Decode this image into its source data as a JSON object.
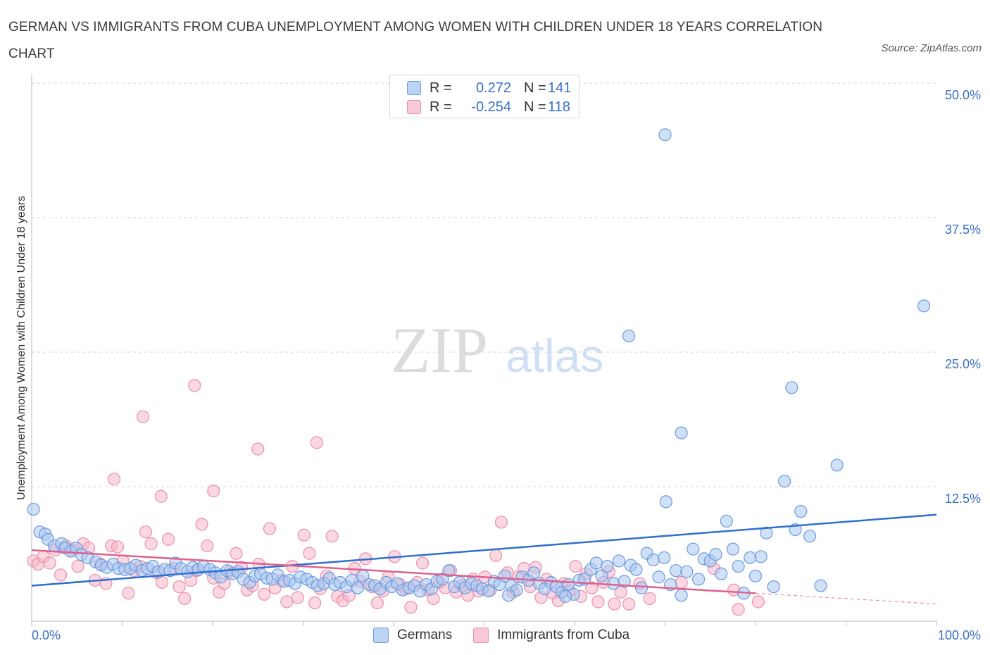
{
  "header": {
    "title": "GERMAN VS IMMIGRANTS FROM CUBA UNEMPLOYMENT AMONG WOMEN WITH CHILDREN UNDER 18 YEARS CORRELATION CHART",
    "source": "Source: ZipAtlas.com"
  },
  "watermark": {
    "zip": "ZIP",
    "atlas": "atlas"
  },
  "legend_top": {
    "rows": [
      {
        "r_label": "R =",
        "r_value": "0.272",
        "n_label": "N =",
        "n_value": "141"
      },
      {
        "r_label": "R =",
        "r_value": "-0.254",
        "n_label": "N =",
        "n_value": "118"
      }
    ]
  },
  "legend_bottom": {
    "germans": "Germans",
    "cuba": "Immigrants from Cuba"
  },
  "colors": {
    "germans_fill": "#a9c6f0",
    "germans_stroke": "#6b9be0",
    "germans_line": "#2f6fcf",
    "cuba_fill": "#f5b7c9",
    "cuba_stroke": "#ec8fab",
    "cuba_line": "#e0608e",
    "axis_label": "#3a6fc4",
    "grid": "#d6d6d6"
  },
  "chart_data": {
    "type": "scatter",
    "ylabel": "Unemployment Among Women with Children Under 18 years",
    "xlabel": "",
    "xlim": [
      0,
      100
    ],
    "ylim": [
      0,
      50
    ],
    "x_tick_labels": [
      "0.0%",
      "100.0%"
    ],
    "y_ticks": [
      12.5,
      25.0,
      37.5,
      50.0
    ],
    "y_tick_labels": [
      "12.5%",
      "25.0%",
      "37.5%",
      "50.0%"
    ],
    "grid": true,
    "legend": "top-center",
    "series": [
      {
        "name": "Germans",
        "r": 0.272,
        "n": 141,
        "trend": {
          "x": [
            0,
            100
          ],
          "y": [
            3.3,
            9.9
          ]
        },
        "points": [
          [
            0.2,
            10.4
          ],
          [
            0.9,
            8.3
          ],
          [
            1.5,
            8.1
          ],
          [
            1.8,
            7.6
          ],
          [
            2.5,
            7.0
          ],
          [
            3.3,
            7.2
          ],
          [
            3.7,
            6.8
          ],
          [
            4.3,
            6.5
          ],
          [
            4.9,
            6.8
          ],
          [
            5.5,
            6.2
          ],
          [
            6.2,
            5.9
          ],
          [
            7.1,
            5.5
          ],
          [
            7.7,
            5.2
          ],
          [
            8.3,
            5.0
          ],
          [
            9.0,
            5.3
          ],
          [
            9.6,
            4.9
          ],
          [
            10.3,
            4.8
          ],
          [
            10.9,
            4.9
          ],
          [
            11.5,
            5.2
          ],
          [
            12.2,
            4.7
          ],
          [
            12.8,
            4.9
          ],
          [
            13.4,
            5.1
          ],
          [
            14.0,
            4.6
          ],
          [
            14.7,
            4.8
          ],
          [
            15.3,
            4.7
          ],
          [
            15.9,
            5.4
          ],
          [
            16.5,
            4.9
          ],
          [
            17.2,
            4.6
          ],
          [
            17.8,
            5.0
          ],
          [
            18.4,
            4.8
          ],
          [
            19.0,
            5.1
          ],
          [
            19.7,
            4.8
          ],
          [
            20.3,
            4.5
          ],
          [
            20.9,
            4.1
          ],
          [
            21.6,
            4.7
          ],
          [
            22.2,
            4.4
          ],
          [
            22.8,
            4.6
          ],
          [
            23.4,
            3.9
          ],
          [
            24.1,
            3.6
          ],
          [
            24.7,
            4.2
          ],
          [
            25.3,
            4.4
          ],
          [
            26.0,
            4.0
          ],
          [
            26.6,
            3.9
          ],
          [
            27.2,
            4.3
          ],
          [
            27.9,
            3.7
          ],
          [
            28.5,
            3.8
          ],
          [
            29.1,
            3.5
          ],
          [
            29.7,
            4.1
          ],
          [
            30.4,
            3.9
          ],
          [
            31.0,
            3.6
          ],
          [
            31.6,
            3.3
          ],
          [
            32.3,
            3.5
          ],
          [
            32.9,
            4.0
          ],
          [
            33.5,
            3.4
          ],
          [
            34.1,
            3.6
          ],
          [
            34.8,
            3.2
          ],
          [
            35.4,
            3.8
          ],
          [
            36.0,
            3.1
          ],
          [
            36.6,
            4.2
          ],
          [
            37.3,
            3.4
          ],
          [
            37.9,
            3.3
          ],
          [
            38.5,
            3.0
          ],
          [
            39.2,
            3.6
          ],
          [
            39.8,
            3.2
          ],
          [
            40.4,
            3.5
          ],
          [
            41.0,
            2.9
          ],
          [
            41.7,
            3.1
          ],
          [
            42.3,
            3.3
          ],
          [
            42.9,
            2.8
          ],
          [
            43.6,
            3.4
          ],
          [
            44.2,
            3.0
          ],
          [
            44.8,
            3.7
          ],
          [
            45.4,
            3.9
          ],
          [
            46.1,
            4.7
          ],
          [
            46.7,
            3.2
          ],
          [
            47.3,
            3.6
          ],
          [
            47.9,
            3.1
          ],
          [
            48.6,
            3.5
          ],
          [
            49.2,
            3.3
          ],
          [
            49.8,
            3.0
          ],
          [
            50.5,
            2.8
          ],
          [
            51.1,
            3.7
          ],
          [
            51.7,
            3.4
          ],
          [
            52.3,
            4.2
          ],
          [
            53.0,
            3.3
          ],
          [
            53.6,
            2.9
          ],
          [
            54.2,
            4.1
          ],
          [
            54.9,
            3.8
          ],
          [
            55.5,
            4.5
          ],
          [
            56.1,
            3.5
          ],
          [
            56.7,
            3.0
          ],
          [
            57.4,
            3.6
          ],
          [
            58.0,
            3.2
          ],
          [
            58.6,
            2.7
          ],
          [
            59.3,
            3.4
          ],
          [
            59.9,
            2.5
          ],
          [
            60.5,
            3.8
          ],
          [
            61.1,
            3.9
          ],
          [
            61.8,
            4.8
          ],
          [
            62.4,
            5.4
          ],
          [
            63.0,
            4.2
          ],
          [
            63.6,
            5.1
          ],
          [
            64.3,
            3.5
          ],
          [
            64.9,
            5.6
          ],
          [
            65.5,
            3.7
          ],
          [
            66.2,
            5.2
          ],
          [
            66.8,
            4.8
          ],
          [
            67.4,
            3.1
          ],
          [
            68.0,
            6.3
          ],
          [
            68.7,
            5.7
          ],
          [
            69.3,
            4.1
          ],
          [
            69.9,
            5.9
          ],
          [
            70.6,
            3.4
          ],
          [
            71.2,
            4.7
          ],
          [
            71.8,
            2.4
          ],
          [
            72.4,
            4.6
          ],
          [
            73.1,
            6.7
          ],
          [
            73.7,
            3.9
          ],
          [
            74.3,
            5.8
          ],
          [
            75.0,
            5.6
          ],
          [
            75.6,
            6.2
          ],
          [
            76.2,
            4.4
          ],
          [
            76.8,
            9.3
          ],
          [
            77.5,
            6.7
          ],
          [
            78.1,
            5.1
          ],
          [
            78.7,
            2.6
          ],
          [
            79.4,
            5.9
          ],
          [
            80.0,
            4.2
          ],
          [
            80.6,
            6.0
          ],
          [
            81.2,
            8.2
          ],
          [
            82.0,
            3.2
          ],
          [
            83.2,
            13.0
          ],
          [
            84.4,
            8.5
          ],
          [
            85.0,
            10.2
          ],
          [
            86.0,
            7.9
          ],
          [
            87.2,
            3.3
          ],
          [
            70.1,
            11.1
          ],
          [
            52.7,
            2.4
          ],
          [
            59.0,
            2.3
          ],
          [
            66.0,
            26.5
          ],
          [
            71.8,
            17.5
          ],
          [
            70.0,
            45.2
          ],
          [
            84.0,
            21.7
          ],
          [
            89.0,
            14.5
          ],
          [
            98.6,
            29.3
          ]
        ]
      },
      {
        "name": "Immigrants from Cuba",
        "r": -0.254,
        "n": 118,
        "trend": {
          "x": [
            0,
            80
          ],
          "y": [
            6.6,
            2.6
          ]
        },
        "trend_extension": {
          "x": [
            80,
            100
          ],
          "y": [
            2.6,
            1.6
          ]
        },
        "points": [
          [
            0.2,
            5.6
          ],
          [
            0.7,
            5.3
          ],
          [
            1.3,
            6.0
          ],
          [
            2.0,
            5.4
          ],
          [
            2.6,
            6.6
          ],
          [
            3.2,
            4.3
          ],
          [
            3.8,
            7.0
          ],
          [
            4.5,
            6.6
          ],
          [
            5.1,
            5.1
          ],
          [
            5.7,
            7.2
          ],
          [
            6.3,
            6.8
          ],
          [
            7.0,
            3.8
          ],
          [
            7.6,
            5.3
          ],
          [
            8.2,
            3.5
          ],
          [
            8.8,
            7.0
          ],
          [
            9.5,
            6.9
          ],
          [
            10.1,
            5.6
          ],
          [
            10.7,
            2.6
          ],
          [
            11.3,
            4.7
          ],
          [
            12.0,
            5.1
          ],
          [
            12.6,
            8.3
          ],
          [
            13.2,
            7.2
          ],
          [
            13.8,
            4.5
          ],
          [
            14.4,
            3.6
          ],
          [
            15.1,
            7.6
          ],
          [
            15.7,
            4.9
          ],
          [
            16.3,
            3.2
          ],
          [
            16.9,
            2.1
          ],
          [
            17.6,
            3.8
          ],
          [
            18.2,
            4.7
          ],
          [
            18.8,
            9.0
          ],
          [
            19.4,
            7.0
          ],
          [
            20.1,
            4.0
          ],
          [
            20.7,
            2.7
          ],
          [
            21.3,
            3.5
          ],
          [
            21.9,
            4.6
          ],
          [
            22.6,
            6.3
          ],
          [
            23.2,
            5.0
          ],
          [
            23.8,
            2.9
          ],
          [
            24.4,
            3.3
          ],
          [
            25.1,
            5.3
          ],
          [
            25.7,
            2.5
          ],
          [
            26.3,
            8.6
          ],
          [
            26.9,
            3.1
          ],
          [
            27.6,
            3.8
          ],
          [
            28.2,
            1.8
          ],
          [
            28.8,
            5.1
          ],
          [
            29.4,
            2.2
          ],
          [
            30.1,
            8.0
          ],
          [
            30.7,
            6.3
          ],
          [
            31.3,
            1.7
          ],
          [
            31.9,
            3.0
          ],
          [
            32.6,
            4.2
          ],
          [
            33.2,
            7.9
          ],
          [
            33.8,
            2.3
          ],
          [
            34.4,
            1.9
          ],
          [
            35.1,
            2.4
          ],
          [
            35.7,
            4.9
          ],
          [
            36.3,
            3.7
          ],
          [
            36.9,
            5.8
          ],
          [
            37.6,
            3.2
          ],
          [
            38.2,
            1.7
          ],
          [
            38.8,
            2.8
          ],
          [
            39.4,
            4.1
          ],
          [
            40.1,
            6.0
          ],
          [
            40.7,
            3.4
          ],
          [
            41.3,
            3.0
          ],
          [
            41.9,
            1.3
          ],
          [
            42.6,
            3.6
          ],
          [
            43.2,
            5.4
          ],
          [
            43.8,
            2.9
          ],
          [
            44.4,
            2.1
          ],
          [
            45.1,
            3.6
          ],
          [
            45.7,
            3.1
          ],
          [
            46.3,
            4.7
          ],
          [
            46.9,
            2.7
          ],
          [
            47.6,
            3.3
          ],
          [
            48.2,
            2.4
          ],
          [
            48.8,
            3.9
          ],
          [
            49.4,
            2.8
          ],
          [
            50.1,
            4.1
          ],
          [
            50.7,
            2.9
          ],
          [
            51.3,
            6.1
          ],
          [
            51.9,
            9.2
          ],
          [
            52.6,
            4.5
          ],
          [
            53.2,
            2.7
          ],
          [
            53.8,
            4.1
          ],
          [
            54.4,
            4.9
          ],
          [
            55.1,
            3.2
          ],
          [
            55.7,
            5.0
          ],
          [
            56.3,
            2.2
          ],
          [
            56.9,
            3.9
          ],
          [
            57.6,
            2.6
          ],
          [
            58.2,
            1.9
          ],
          [
            58.8,
            3.5
          ],
          [
            59.4,
            2.8
          ],
          [
            60.1,
            5.1
          ],
          [
            60.7,
            2.3
          ],
          [
            61.3,
            4.4
          ],
          [
            61.9,
            3.1
          ],
          [
            62.6,
            1.8
          ],
          [
            63.2,
            3.6
          ],
          [
            63.8,
            4.6
          ],
          [
            64.4,
            1.6
          ],
          [
            65.1,
            2.7
          ],
          [
            66.0,
            1.6
          ],
          [
            67.2,
            3.5
          ],
          [
            68.3,
            2.1
          ],
          [
            71.8,
            3.6
          ],
          [
            75.4,
            4.9
          ],
          [
            77.6,
            2.9
          ],
          [
            78.1,
            1.1
          ],
          [
            80.3,
            1.8
          ],
          [
            18.0,
            21.9
          ],
          [
            12.3,
            19.0
          ],
          [
            25.0,
            16.0
          ],
          [
            31.5,
            16.6
          ],
          [
            9.1,
            13.2
          ],
          [
            14.3,
            11.6
          ],
          [
            20.1,
            12.1
          ]
        ]
      }
    ]
  }
}
